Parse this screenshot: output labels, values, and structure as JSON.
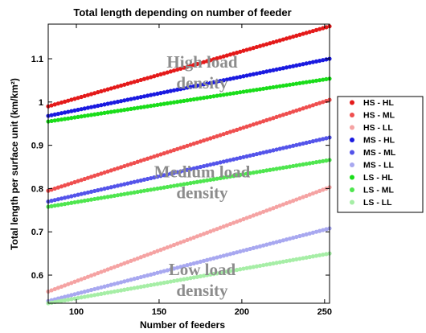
{
  "chart_data": {
    "type": "scatter",
    "title": "Total length depending on number of feeder",
    "xlabel": "Number of feeders",
    "ylabel": "Total length per surface unit (km/km²)",
    "xlim": [
      83,
      253
    ],
    "ylim": [
      0.535,
      1.18
    ],
    "xticks": [
      "100",
      "150",
      "200",
      "250"
    ],
    "yticks": [
      "0.6",
      "0.7",
      "0.8",
      "0.9",
      "1",
      "1.1"
    ],
    "grid": false,
    "legend_position": "right",
    "series": [
      {
        "name": "HS - HL",
        "color": "#e41a1a",
        "x": [
          83,
          253
        ],
        "y": [
          0.99,
          1.175
        ]
      },
      {
        "name": "HS - ML",
        "color": "#ef4f4f",
        "x": [
          83,
          253
        ],
        "y": [
          0.795,
          1.005
        ]
      },
      {
        "name": "HS - LL",
        "color": "#f5a3a3",
        "x": [
          83,
          253
        ],
        "y": [
          0.562,
          0.803
        ]
      },
      {
        "name": "MS - HL",
        "color": "#1a1ae0",
        "x": [
          83,
          253
        ],
        "y": [
          0.968,
          1.1
        ]
      },
      {
        "name": "MS - ML",
        "color": "#5454ea",
        "x": [
          83,
          253
        ],
        "y": [
          0.77,
          0.918
        ]
      },
      {
        "name": "MS - LL",
        "color": "#a8a8f0",
        "x": [
          83,
          253
        ],
        "y": [
          0.54,
          0.708
        ]
      },
      {
        "name": "LS - HL",
        "color": "#1add1a",
        "x": [
          83,
          253
        ],
        "y": [
          0.955,
          1.054
        ]
      },
      {
        "name": "LS - ML",
        "color": "#4fe64f",
        "x": [
          83,
          253
        ],
        "y": [
          0.758,
          0.866
        ]
      },
      {
        "name": "LS - LL",
        "color": "#a6eea6",
        "x": [
          83,
          253
        ],
        "y": [
          0.535,
          0.65
        ]
      }
    ],
    "annotations": [
      {
        "lines": [
          "High load",
          "density"
        ],
        "x": 176,
        "y": 1.08
      },
      {
        "lines": [
          "Medium load",
          "density"
        ],
        "x": 176,
        "y": 0.826
      },
      {
        "lines": [
          "Low load",
          "density"
        ],
        "x": 176,
        "y": 0.6
      }
    ]
  }
}
